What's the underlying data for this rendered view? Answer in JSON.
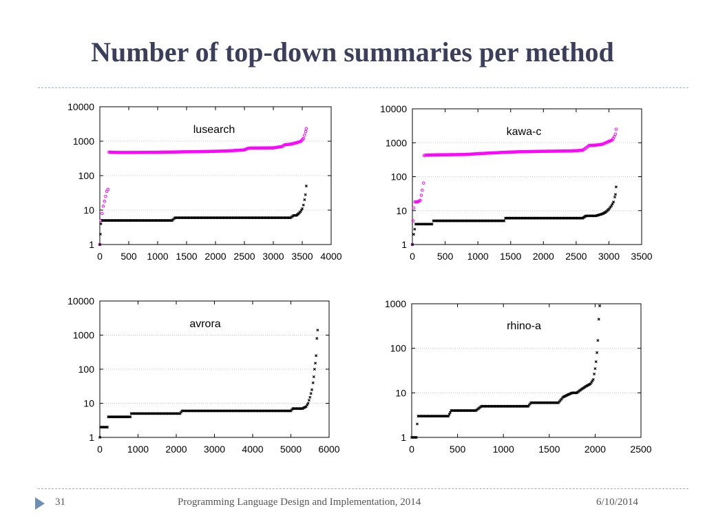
{
  "slide": {
    "title": "Number of top-down summaries per method",
    "footer_page": "31",
    "footer_text": "Programming Language Design and Implementation, 2014",
    "footer_date": "6/10/2014"
  },
  "colors": {
    "series_a": "#ff00ff",
    "series_b": "#000000",
    "grid": "#c8c8c8"
  },
  "chart_data": [
    {
      "type": "scatter",
      "title": "lusearch",
      "xlabel": "",
      "ylabel": "",
      "xlim": [
        0,
        4000
      ],
      "ylim": [
        1,
        10000
      ],
      "yscale": "log",
      "xticks": [
        0,
        500,
        1000,
        1500,
        2000,
        2500,
        3000,
        3500,
        4000
      ],
      "yticks": [
        1,
        10,
        100,
        1000,
        10000
      ],
      "grid": true,
      "series": [
        {
          "color": "#ff00ff",
          "marker": "circle",
          "x": [
            0,
            20,
            40,
            60,
            80,
            100,
            120,
            140,
            160,
            300,
            600,
            1000,
            1400,
            1800,
            2200,
            2500,
            2560,
            2600,
            3000,
            3150,
            3200,
            3300,
            3400,
            3480,
            3520,
            3540,
            3560,
            3570
          ],
          "y": [
            1,
            5,
            8,
            13,
            18,
            25,
            35,
            40,
            480,
            470,
            470,
            475,
            490,
            500,
            520,
            560,
            620,
            630,
            640,
            700,
            790,
            820,
            900,
            1000,
            1200,
            1500,
            1900,
            2300
          ]
        },
        {
          "color": "#000000",
          "marker": "cross",
          "x": [
            0,
            10,
            20,
            40,
            100,
            500,
            1000,
            1250,
            1300,
            2000,
            2500,
            3000,
            3300,
            3350,
            3400,
            3440,
            3470,
            3500,
            3520,
            3540,
            3555,
            3570
          ],
          "y": [
            1,
            2,
            4,
            5,
            5,
            5,
            5,
            5,
            6,
            6,
            6,
            6,
            6,
            7,
            7,
            8,
            9,
            11,
            14,
            20,
            28,
            50
          ]
        }
      ]
    },
    {
      "type": "scatter",
      "title": "kawa-c",
      "xlabel": "",
      "ylabel": "",
      "xlim": [
        0,
        3500
      ],
      "ylim": [
        1,
        10000
      ],
      "yscale": "log",
      "xticks": [
        0,
        500,
        1000,
        1500,
        2000,
        2500,
        3000,
        3500
      ],
      "yticks": [
        1,
        10,
        100,
        1000,
        10000
      ],
      "grid": true,
      "series": [
        {
          "color": "#ff00ff",
          "marker": "circle",
          "x": [
            0,
            10,
            20,
            40,
            80,
            120,
            150,
            170,
            180,
            200,
            400,
            800,
            1200,
            1600,
            2000,
            2400,
            2600,
            2700,
            2800,
            2900,
            3000,
            3050,
            3080,
            3100,
            3110
          ],
          "y": [
            1,
            5,
            12,
            18,
            18,
            20,
            40,
            65,
            420,
            430,
            440,
            450,
            500,
            540,
            560,
            570,
            600,
            830,
            850,
            900,
            1100,
            1200,
            1500,
            1800,
            2500
          ]
        },
        {
          "color": "#000000",
          "marker": "cross",
          "x": [
            0,
            20,
            50,
            100,
            300,
            320,
            600,
            1000,
            1400,
            1420,
            2000,
            2600,
            2650,
            2800,
            2900,
            2950,
            3000,
            3040,
            3070,
            3090,
            3100,
            3110
          ],
          "y": [
            1,
            2,
            4,
            4,
            4,
            5,
            5,
            5,
            5,
            6,
            6,
            6,
            7,
            7,
            8,
            9,
            11,
            14,
            18,
            25,
            30,
            50
          ]
        }
      ]
    },
    {
      "type": "scatter",
      "title": "avrora",
      "xlabel": "",
      "ylabel": "",
      "xlim": [
        0,
        6000
      ],
      "ylim": [
        1,
        10000
      ],
      "yscale": "log",
      "xticks": [
        0,
        1000,
        2000,
        3000,
        4000,
        5000,
        6000
      ],
      "yticks": [
        1,
        10,
        100,
        1000,
        10000
      ],
      "grid": true,
      "series": [
        {
          "color": "#000000",
          "marker": "cross",
          "x": [
            0,
            20,
            100,
            200,
            220,
            500,
            800,
            820,
            1500,
            2100,
            2150,
            3000,
            4000,
            5000,
            5050,
            5300,
            5400,
            5450,
            5500,
            5550,
            5580,
            5600,
            5620,
            5640,
            5660,
            5680,
            5700
          ],
          "y": [
            1,
            2,
            2,
            2,
            4,
            4,
            4,
            5,
            5,
            5,
            6,
            6,
            6,
            6,
            7,
            7,
            8,
            10,
            15,
            25,
            40,
            60,
            100,
            150,
            250,
            800,
            1400
          ]
        }
      ]
    },
    {
      "type": "scatter",
      "title": "rhino-a",
      "xlabel": "",
      "ylabel": "",
      "xlim": [
        0,
        2500
      ],
      "ylim": [
        1,
        1000
      ],
      "yscale": "log",
      "xticks": [
        0,
        500,
        1000,
        1500,
        2000,
        2500
      ],
      "yticks": [
        1,
        10,
        100,
        1000
      ],
      "grid": true,
      "series": [
        {
          "color": "#000000",
          "marker": "cross",
          "x": [
            0,
            50,
            60,
            70,
            80,
            400,
            430,
            700,
            760,
            1000,
            1270,
            1300,
            1600,
            1650,
            1700,
            1750,
            1800,
            1850,
            1900,
            1950,
            1980,
            2000,
            2010,
            2020,
            2030,
            2040,
            2050
          ],
          "y": [
            1,
            1,
            2,
            3,
            3,
            3,
            4,
            4,
            5,
            5,
            5,
            6,
            6,
            8,
            9,
            10,
            10,
            12,
            14,
            16,
            20,
            35,
            50,
            80,
            150,
            450,
            900
          ]
        }
      ]
    }
  ]
}
